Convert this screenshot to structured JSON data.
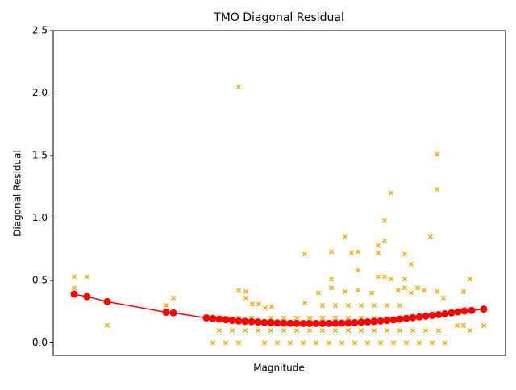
{
  "chart_data": {
    "type": "scatter",
    "title": "TMO Diagonal Residual",
    "x_label": "Magnitude",
    "y_label": "Diagonal Residual",
    "xlim": [
      0,
      561
    ],
    "ylim": [
      -0.1,
      2.5
    ],
    "yticks": [
      {
        "value": 0,
        "label": "0.0"
      },
      {
        "value": 0.5,
        "label": "0.5"
      },
      {
        "value": 1,
        "label": "1.0"
      },
      {
        "value": 1.5,
        "label": "1.5"
      },
      {
        "value": 2,
        "label": "2.0"
      },
      {
        "value": 2.5,
        "label": "2.5"
      }
    ],
    "series": [
      {
        "style": "markers",
        "color": "#ffa500",
        "x": [
          26,
          26,
          42,
          67,
          140,
          149,
          230,
          230,
          239,
          239,
          247,
          255,
          263,
          271,
          312,
          312,
          329,
          345,
          345,
          345,
          362,
          362,
          370,
          378,
          378,
          378,
          395,
          403,
          403,
          403,
          411,
          411,
          411,
          419,
          419,
          428,
          436,
          436,
          436,
          444,
          444,
          452,
          460,
          468,
          476,
          476,
          476,
          484,
          509,
          517,
          517,
          534,
          501,
          509,
          206,
          222,
          238,
          254,
          270,
          286,
          302,
          318,
          334,
          350,
          366,
          382,
          398,
          414,
          430,
          446,
          462,
          478,
          198,
          214,
          230,
          262,
          278,
          294,
          310,
          326,
          342,
          358,
          374,
          390,
          406,
          422,
          438,
          454,
          470,
          486,
          214,
          230,
          246,
          270,
          286,
          302,
          318,
          334,
          350,
          366,
          382,
          398,
          414,
          430,
          446,
          334,
          350,
          366,
          382,
          398,
          414,
          430
        ],
        "values": [
          0.53,
          0.44,
          0.53,
          0.14,
          0.3,
          0.36,
          2.05,
          0.42,
          0.41,
          0.36,
          0.31,
          0.31,
          0.28,
          0.29,
          0.71,
          0.32,
          0.4,
          0.73,
          0.51,
          0.44,
          0.85,
          0.41,
          0.72,
          0.73,
          0.58,
          0.42,
          0.4,
          0.78,
          0.72,
          0.53,
          0.98,
          0.82,
          0.53,
          1.2,
          0.51,
          0.42,
          0.71,
          0.51,
          0.44,
          0.63,
          0.4,
          0.44,
          0.42,
          0.85,
          1.51,
          1.23,
          0.41,
          0.36,
          0.41,
          0.51,
          0.1,
          0.14,
          0.14,
          0.14,
          0.1,
          0.1,
          0.1,
          0.1,
          0.1,
          0.1,
          0.1,
          0.1,
          0.1,
          0.1,
          0.1,
          0.1,
          0.1,
          0.1,
          0.1,
          0.1,
          0.1,
          0.1,
          0,
          0,
          0,
          0,
          0,
          0,
          0,
          0,
          0,
          0,
          0,
          0,
          0,
          0,
          0,
          0,
          0,
          0,
          0.2,
          0.2,
          0.2,
          0.2,
          0.2,
          0.2,
          0.2,
          0.2,
          0.2,
          0.2,
          0.2,
          0.2,
          0.2,
          0.2,
          0.2,
          0.3,
          0.3,
          0.3,
          0.3,
          0.3,
          0.3,
          0.3
        ]
      },
      {
        "style": "line",
        "color": "#ff0000",
        "x": [
          26,
          42,
          67,
          140,
          149,
          190,
          198,
          206,
          214,
          222,
          230,
          238,
          246,
          254,
          262,
          270,
          278,
          286,
          294,
          302,
          310,
          318,
          326,
          334,
          342,
          350,
          358,
          366,
          374,
          382,
          390,
          398,
          406,
          414,
          422,
          430,
          438,
          446,
          454,
          462,
          470,
          478,
          486,
          494,
          502,
          510,
          519,
          534
        ],
        "values": [
          0.39,
          0.37,
          0.33,
          0.245,
          0.24,
          0.2,
          0.195,
          0.19,
          0.185,
          0.18,
          0.175,
          0.172,
          0.17,
          0.167,
          0.163,
          0.162,
          0.16,
          0.158,
          0.157,
          0.156,
          0.155,
          0.155,
          0.155,
          0.155,
          0.156,
          0.157,
          0.158,
          0.16,
          0.162,
          0.165,
          0.168,
          0.171,
          0.175,
          0.179,
          0.184,
          0.19,
          0.196,
          0.202,
          0.208,
          0.214,
          0.22,
          0.226,
          0.232,
          0.24,
          0.248,
          0.255,
          0.26,
          0.27
        ]
      }
    ]
  }
}
